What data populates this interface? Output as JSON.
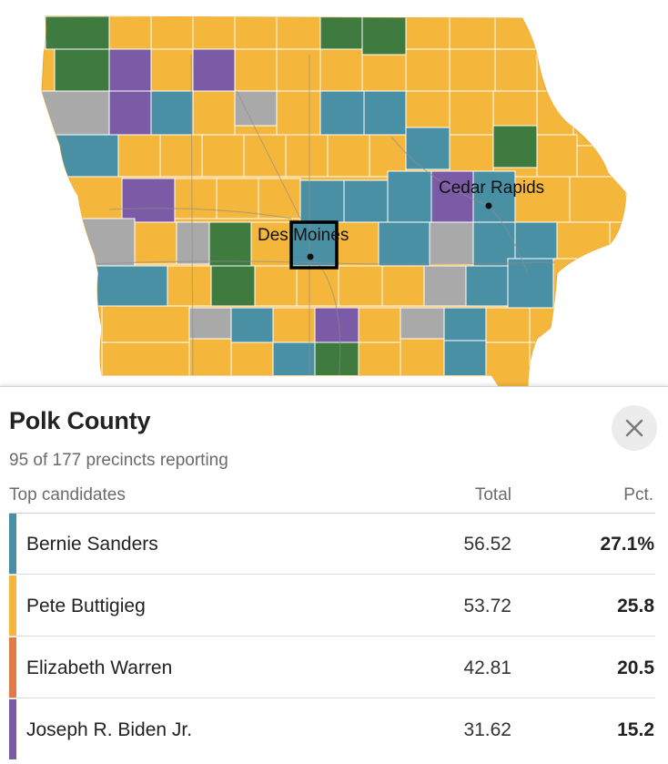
{
  "colors": {
    "sanders": "#4a90a4",
    "buttigieg": "#f5b73b",
    "warren": "#e07b45",
    "biden": "#7b5aa6",
    "klobuchar": "#3f7a3f",
    "tie": "#a9a9a9",
    "county_border": "#ffffff",
    "road": "#8c8c8c"
  },
  "map": {
    "cities": [
      {
        "name": "Cedar Rapids"
      },
      {
        "name": "Des Moines"
      }
    ]
  },
  "panel": {
    "county": "Polk County",
    "reporting": "95 of 177 precincts reporting",
    "headers": {
      "candidates": "Top candidates",
      "total": "Total",
      "pct": "Pct."
    },
    "close_icon": "close-icon",
    "candidates": [
      {
        "name": "Bernie Sanders",
        "total": "56.52",
        "pct": "27.1%",
        "color": "#4a90a4"
      },
      {
        "name": "Pete Buttigieg",
        "total": "53.72",
        "pct": "25.8",
        "color": "#f5b73b"
      },
      {
        "name": "Elizabeth Warren",
        "total": "42.81",
        "pct": "20.5",
        "color": "#e07b45"
      },
      {
        "name": "Joseph R. Biden Jr.",
        "total": "31.62",
        "pct": "15.2",
        "color": "#7b5aa6"
      }
    ]
  }
}
